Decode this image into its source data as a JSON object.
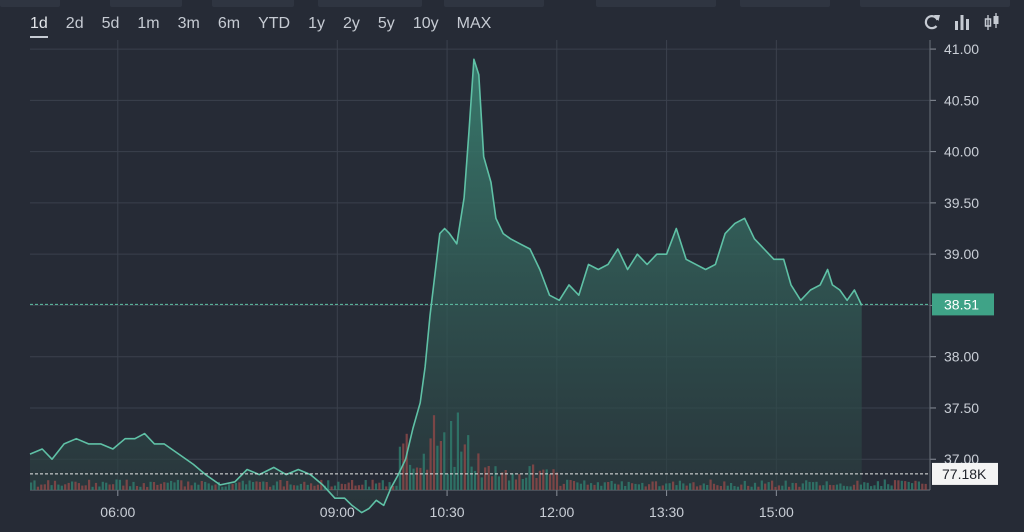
{
  "range_buttons": [
    "1d",
    "2d",
    "5d",
    "1m",
    "3m",
    "6m",
    "YTD",
    "1y",
    "2y",
    "5y",
    "10y",
    "MAX"
  ],
  "active_range": "1d",
  "toolbar": {
    "icons": [
      "refresh-icon",
      "bar-chart-icon",
      "candlestick-icon"
    ]
  },
  "colors": {
    "background": "#262b36",
    "grid": "#3b414d",
    "line": "#5fc1a6",
    "area_top": "#3a8272",
    "area_bottom": "#2a3a3d",
    "volume_up": "#2f7a6c",
    "volume_down": "#8a4848",
    "label_fill": "#3fa387"
  },
  "chart_data": {
    "type": "line",
    "x_ticks": [
      "06:00",
      "09:00",
      "10:30",
      "12:00",
      "13:30",
      "15:00"
    ],
    "x_tick_minutes": [
      360,
      540,
      630,
      720,
      810,
      900
    ],
    "x_range_minutes": [
      288,
      1026
    ],
    "y_ticks": [
      "37.00",
      "37.50",
      "38.00",
      "38.50",
      "39.00",
      "39.50",
      "40.00",
      "40.50",
      "41.00"
    ],
    "ylim": [
      36.7,
      41.03
    ],
    "last_price": 38.51,
    "last_price_label": "38.51",
    "volume_label": "77.18K",
    "volume_reference": 77180,
    "volume_max": 720000,
    "price_series": {
      "x": [
        288,
        298,
        306,
        316,
        326,
        336,
        346,
        356,
        366,
        374,
        382,
        390,
        398,
        410,
        422,
        432,
        444,
        456,
        466,
        476,
        488,
        498,
        508,
        518,
        528,
        538,
        546,
        552,
        560,
        566,
        572,
        578,
        584,
        590,
        596,
        602,
        608,
        612,
        616,
        620,
        624,
        628,
        632,
        638,
        644,
        648,
        652,
        656,
        660,
        666,
        670,
        676,
        682,
        690,
        698,
        706,
        714,
        722,
        730,
        738,
        746,
        754,
        762,
        770,
        778,
        786,
        794,
        802,
        810,
        818,
        826,
        834,
        842,
        850,
        858,
        866,
        874,
        882,
        890,
        898,
        906,
        912,
        920,
        928,
        936,
        942,
        946,
        952,
        958,
        964,
        970
      ],
      "y": [
        37.05,
        37.1,
        37.0,
        37.15,
        37.2,
        37.15,
        37.15,
        37.1,
        37.2,
        37.2,
        37.25,
        37.15,
        37.15,
        37.05,
        36.95,
        36.85,
        36.75,
        36.78,
        36.9,
        36.85,
        36.92,
        36.85,
        36.9,
        36.85,
        36.75,
        36.62,
        36.62,
        36.55,
        36.48,
        36.52,
        36.6,
        36.55,
        36.72,
        36.85,
        37.0,
        37.3,
        37.55,
        37.9,
        38.4,
        38.8,
        39.2,
        39.25,
        39.2,
        39.1,
        39.55,
        40.2,
        40.9,
        40.75,
        39.95,
        39.7,
        39.35,
        39.2,
        39.15,
        39.1,
        39.05,
        38.85,
        38.6,
        38.55,
        38.7,
        38.6,
        38.9,
        38.85,
        38.9,
        39.05,
        38.85,
        39.0,
        38.9,
        39.0,
        39.0,
        39.25,
        38.95,
        38.9,
        38.85,
        38.9,
        39.2,
        39.3,
        39.35,
        39.15,
        39.05,
        38.95,
        38.95,
        38.7,
        38.55,
        38.65,
        38.7,
        38.85,
        38.7,
        38.65,
        38.55,
        38.65,
        38.5
      ],
      "name": ""
    }
  }
}
